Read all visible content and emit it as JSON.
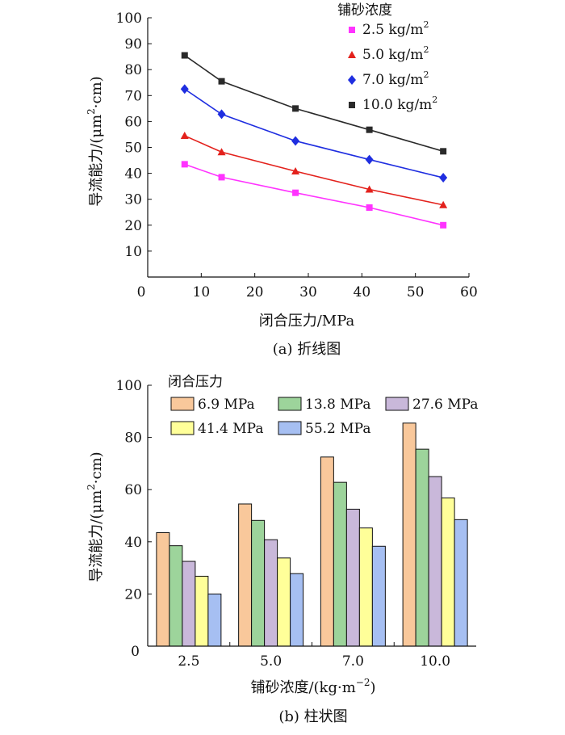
{
  "chart_data": [
    {
      "type": "line",
      "caption": "(a) 折线图",
      "xlabel": "闭合压力/MPa",
      "ylabel_main": "导流能力/(μm",
      "ylabel_sup": "2",
      "ylabel_tail": "·cm)",
      "xlim": [
        0,
        60
      ],
      "ylim": [
        0,
        100
      ],
      "xticks": [
        "0",
        "10",
        "20",
        "30",
        "40",
        "50",
        "60"
      ],
      "yticks": [
        "10",
        "20",
        "30",
        "40",
        "50",
        "60",
        "70",
        "80",
        "90",
        "100"
      ],
      "legend_title": "铺砂浓度",
      "legend_placement": "top-right",
      "x": [
        6.9,
        13.8,
        27.6,
        41.4,
        55.2
      ],
      "series": [
        {
          "name": "2.5 kg/m",
          "name_sup": "2",
          "color": "#ff33ff",
          "marker": "square",
          "values": [
            43.5,
            38.5,
            32.5,
            26.8,
            20
          ]
        },
        {
          "name": "5.0 kg/m",
          "name_sup": "2",
          "color": "#e3211c",
          "marker": "triangle",
          "values": [
            54.5,
            48.2,
            40.8,
            33.8,
            27.8
          ]
        },
        {
          "name": "7.0 kg/m",
          "name_sup": "2",
          "color": "#1f2ee0",
          "marker": "diamond",
          "values": [
            72.5,
            62.8,
            52.5,
            45.3,
            38.3
          ]
        },
        {
          "name": "10.0 kg/m",
          "name_sup": "2",
          "color": "#2a2a2a",
          "marker": "square",
          "values": [
            85.5,
            75.5,
            65.0,
            56.8,
            48.5
          ]
        }
      ]
    },
    {
      "type": "bar",
      "caption": "(b) 柱状图",
      "xlabel_main": "铺砂浓度/(kg·m",
      "xlabel_sup": "−2",
      "xlabel_tail": ")",
      "ylabel_main": "导流能力/(μm",
      "ylabel_sup": "2",
      "ylabel_tail": "·cm)",
      "ylim": [
        0,
        100
      ],
      "yticks": [
        "0",
        "20",
        "40",
        "60",
        "80",
        "100"
      ],
      "categories": [
        "2.5",
        "5.0",
        "7.0",
        "10.0"
      ],
      "legend_title": "闭合压力",
      "legend_placement": "top",
      "series": [
        {
          "name": "6.9 MPa",
          "color": "#f9c89b",
          "values": [
            43.5,
            54.5,
            72.5,
            85.5
          ]
        },
        {
          "name": "13.8 MPa",
          "color": "#9dd49b",
          "values": [
            38.5,
            48.2,
            62.8,
            75.5
          ]
        },
        {
          "name": "27.6 MPa",
          "color": "#c9b8da",
          "values": [
            32.5,
            40.8,
            52.5,
            65.0
          ]
        },
        {
          "name": "41.4 MPa",
          "color": "#ffff99",
          "values": [
            26.8,
            33.8,
            45.3,
            56.8
          ]
        },
        {
          "name": "55.2 MPa",
          "color": "#a6bff2",
          "values": [
            20,
            27.8,
            38.3,
            48.5
          ]
        }
      ]
    }
  ]
}
